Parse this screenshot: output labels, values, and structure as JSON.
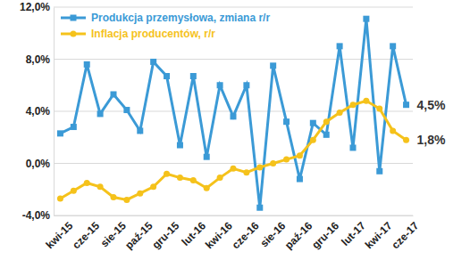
{
  "chart_data": {
    "type": "line",
    "categories": [
      "kwi-15",
      null,
      "cze-15",
      null,
      "sie-15",
      null,
      "paź-15",
      null,
      "gru-15",
      null,
      "lut-16",
      null,
      "kwi-16",
      null,
      "cze-16",
      null,
      "sie-16",
      null,
      "paź-16",
      null,
      "gru-16",
      null,
      "lut-17",
      null,
      "kwi-17",
      null,
      "cze-17"
    ],
    "series": [
      {
        "name": "Produkcja przemysłowa, zmiana r/r",
        "color": "#3b9ad6",
        "marker": "square",
        "line_style": "solid",
        "values": [
          2.3,
          2.8,
          7.6,
          3.8,
          5.3,
          4.1,
          2.5,
          7.8,
          6.7,
          1.4,
          6.7,
          0.5,
          6.0,
          3.6,
          6.0,
          -3.4,
          7.5,
          3.2,
          -1.2,
          3.1,
          2.2,
          9.0,
          1.2,
          11.1,
          -0.6,
          9.0,
          4.5
        ],
        "value_labels": [
          null,
          null,
          null,
          null,
          null,
          null,
          null,
          null,
          null,
          null,
          null,
          null,
          null,
          null,
          null,
          null,
          null,
          null,
          null,
          null,
          null,
          null,
          null,
          null,
          null,
          null,
          "4,5%"
        ]
      },
      {
        "name": "Inflacja producentów, r/r",
        "color": "#f5c21b",
        "marker": "circle",
        "line_style": "solid",
        "values": [
          -2.7,
          -2.1,
          -1.5,
          -1.8,
          -2.6,
          -2.8,
          -2.3,
          -1.8,
          -0.8,
          -1.1,
          -1.3,
          -1.9,
          -1.1,
          -0.4,
          -0.7,
          -0.3,
          0.0,
          0.3,
          0.6,
          1.8,
          3.2,
          3.9,
          4.5,
          4.8,
          4.2,
          2.5,
          1.8
        ],
        "value_labels": [
          null,
          null,
          null,
          null,
          null,
          null,
          null,
          null,
          null,
          null,
          null,
          null,
          null,
          null,
          null,
          null,
          null,
          null,
          null,
          null,
          null,
          null,
          null,
          null,
          null,
          null,
          "1,8%"
        ]
      }
    ],
    "ylim": [
      -4,
      12
    ],
    "yticks": [
      {
        "value": -4,
        "label": "-4,0%"
      },
      {
        "value": 0,
        "label": "0,0%"
      },
      {
        "value": 4,
        "label": "4,0%"
      },
      {
        "value": 8,
        "label": "8,0%"
      },
      {
        "value": 12,
        "label": "12,0%"
      }
    ],
    "grid": true,
    "legend": "upper left",
    "data_labels": true
  }
}
